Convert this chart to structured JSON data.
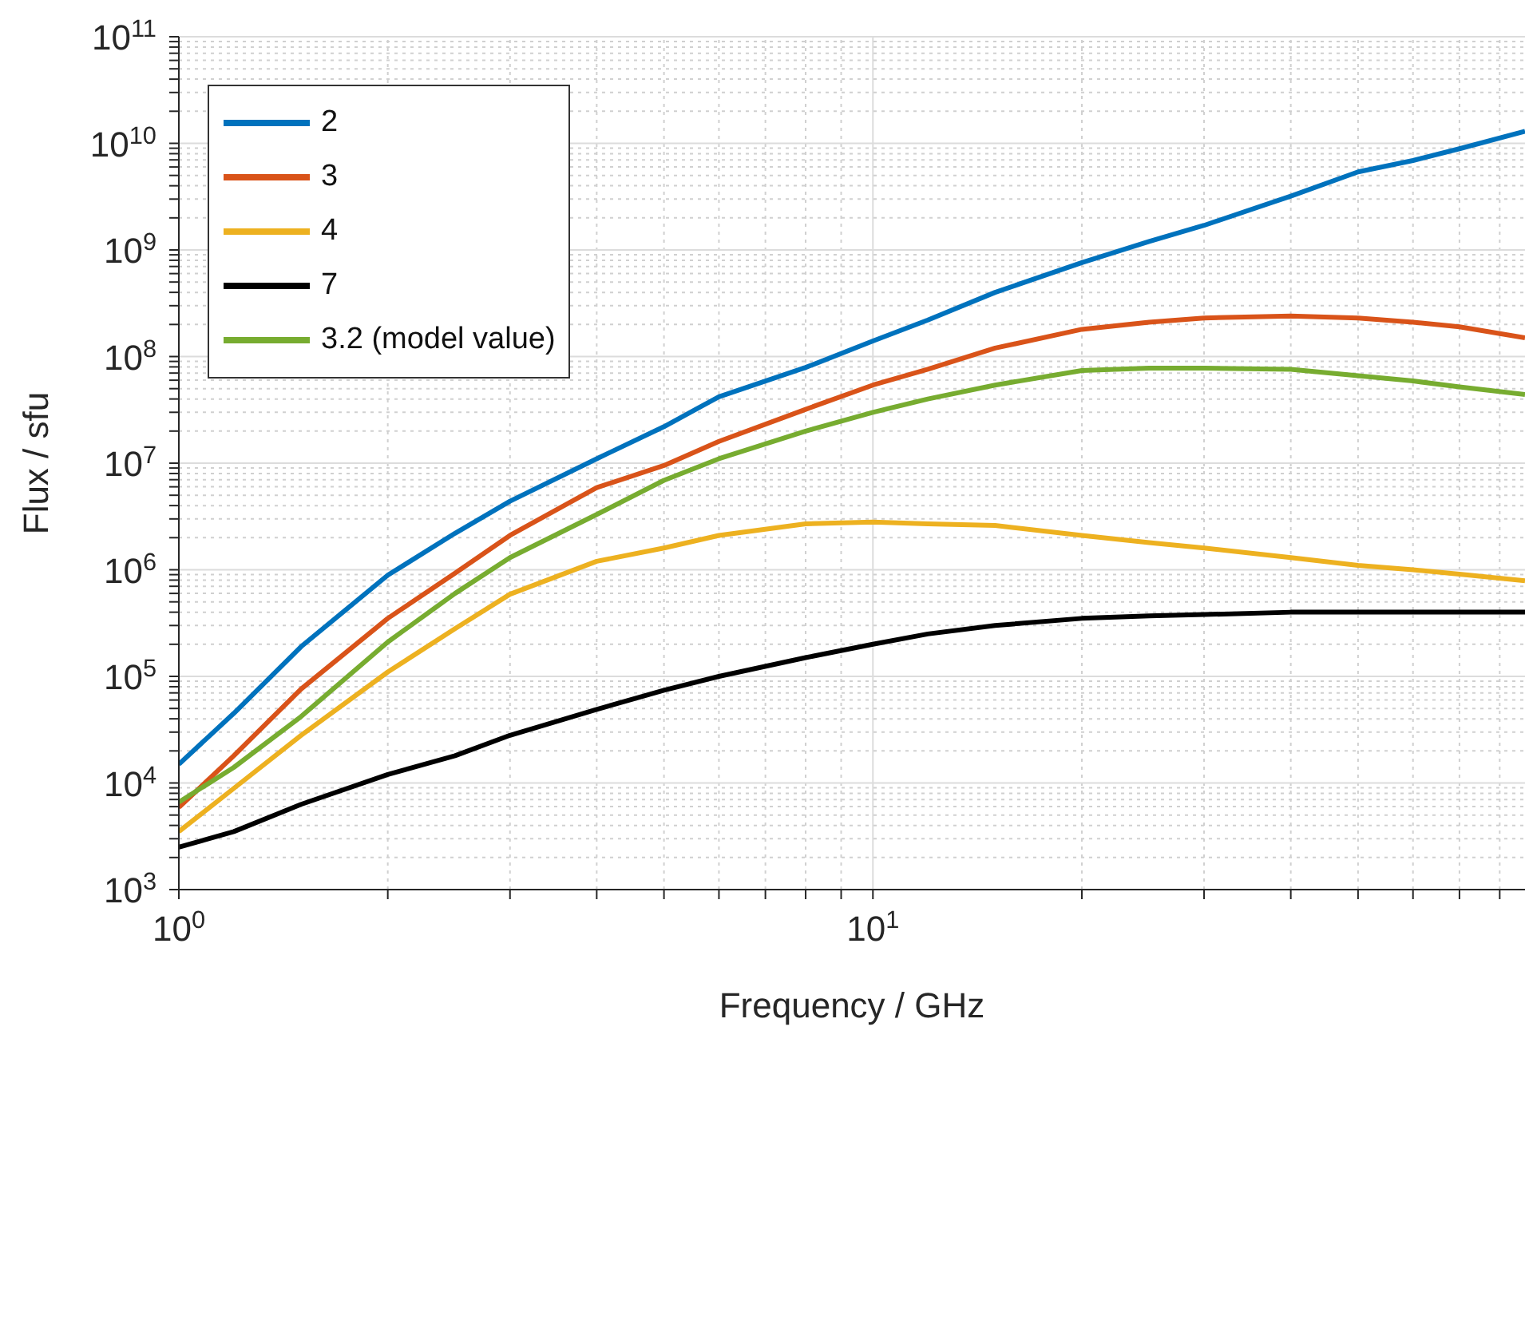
{
  "chart_data": {
    "type": "line",
    "xlabel": "Frequency / GHz",
    "ylabel": "Flux / sfu",
    "log": "xy",
    "grid": true,
    "legend": "top left",
    "marker": "none",
    "line_style": "solid",
    "x": [
      1,
      1.2,
      1.5,
      2,
      2.5,
      3,
      4,
      5,
      6,
      8,
      10,
      12,
      15,
      20,
      25,
      30,
      40,
      50,
      60,
      70,
      87
    ],
    "xlim": [
      1,
      87
    ],
    "xticks": [
      {
        "value": 1,
        "label": "10$^{0}$"
      },
      {
        "value": 2,
        "label": null
      },
      {
        "value": 3,
        "label": null
      },
      {
        "value": 4,
        "label": null
      },
      {
        "value": 5,
        "label": null
      },
      {
        "value": 6,
        "label": null
      },
      {
        "value": 7,
        "label": null
      },
      {
        "value": 8,
        "label": null
      },
      {
        "value": 9,
        "label": null
      },
      {
        "value": 10,
        "label": "10$^{1}$"
      },
      {
        "value": 20,
        "label": null
      },
      {
        "value": 30,
        "label": null
      },
      {
        "value": 40,
        "label": null
      },
      {
        "value": 50,
        "label": null
      },
      {
        "value": 60,
        "label": null
      },
      {
        "value": 70,
        "label": null
      },
      {
        "value": 80,
        "label": null
      }
    ],
    "ylim": [
      1000.0,
      100000000000.0
    ],
    "yticks": [
      {
        "value": 1000.0,
        "label": "10$^{3}$"
      },
      {
        "value": 2000.0,
        "label": null
      },
      {
        "value": 3000.0,
        "label": null
      },
      {
        "value": 4000.0,
        "label": null
      },
      {
        "value": 5000.0,
        "label": null
      },
      {
        "value": 6000.0,
        "label": null
      },
      {
        "value": 7000.0,
        "label": null
      },
      {
        "value": 8000.0,
        "label": null
      },
      {
        "value": 9000.0,
        "label": null
      },
      {
        "value": 10000.0,
        "label": "10$^{4}$"
      },
      {
        "value": 20000.0,
        "label": null
      },
      {
        "value": 30000.0,
        "label": null
      },
      {
        "value": 40000.0,
        "label": null
      },
      {
        "value": 50000.0,
        "label": null
      },
      {
        "value": 60000.0,
        "label": null
      },
      {
        "value": 70000.0,
        "label": null
      },
      {
        "value": 80000.0,
        "label": null
      },
      {
        "value": 90000.0,
        "label": null
      },
      {
        "value": 100000.0,
        "label": "10$^{5}$"
      },
      {
        "value": 200000.0,
        "label": null
      },
      {
        "value": 300000.0,
        "label": null
      },
      {
        "value": 400000.0,
        "label": null
      },
      {
        "value": 500000.0,
        "label": null
      },
      {
        "value": 600000.0,
        "label": null
      },
      {
        "value": 700000.0,
        "label": null
      },
      {
        "value": 800000.0,
        "label": null
      },
      {
        "value": 900000.0,
        "label": null
      },
      {
        "value": 1000000.0,
        "label": "10$^{6}$"
      },
      {
        "value": 2000000.0,
        "label": null
      },
      {
        "value": 3000000.0,
        "label": null
      },
      {
        "value": 4000000.0,
        "label": null
      },
      {
        "value": 5000000.0,
        "label": null
      },
      {
        "value": 6000000.0,
        "label": null
      },
      {
        "value": 7000000.0,
        "label": null
      },
      {
        "value": 8000000.0,
        "label": null
      },
      {
        "value": 9000000.0,
        "label": null
      },
      {
        "value": 10000000.0,
        "label": "10$^{7}$"
      },
      {
        "value": 20000000.0,
        "label": null
      },
      {
        "value": 30000000.0,
        "label": null
      },
      {
        "value": 40000000.0,
        "label": null
      },
      {
        "value": 50000000.0,
        "label": null
      },
      {
        "value": 60000000.0,
        "label": null
      },
      {
        "value": 70000000.0,
        "label": null
      },
      {
        "value": 80000000.0,
        "label": null
      },
      {
        "value": 90000000.0,
        "label": null
      },
      {
        "value": 100000000.0,
        "label": "10$^{8}$"
      },
      {
        "value": 200000000.0,
        "label": null
      },
      {
        "value": 300000000.0,
        "label": null
      },
      {
        "value": 400000000.0,
        "label": null
      },
      {
        "value": 500000000.0,
        "label": null
      },
      {
        "value": 600000000.0,
        "label": null
      },
      {
        "value": 700000000.0,
        "label": null
      },
      {
        "value": 800000000.0,
        "label": null
      },
      {
        "value": 900000000.0,
        "label": null
      },
      {
        "value": 1000000000.0,
        "label": "10$^{9}$"
      },
      {
        "value": 2000000000.0,
        "label": null
      },
      {
        "value": 3000000000.0,
        "label": null
      },
      {
        "value": 4000000000.0,
        "label": null
      },
      {
        "value": 5000000000.0,
        "label": null
      },
      {
        "value": 6000000000.0,
        "label": null
      },
      {
        "value": 7000000000.0,
        "label": null
      },
      {
        "value": 8000000000.0,
        "label": null
      },
      {
        "value": 9000000000.0,
        "label": null
      },
      {
        "value": 10000000000.0,
        "label": "10$^{10}$"
      },
      {
        "value": 20000000000.0,
        "label": null
      },
      {
        "value": 30000000000.0,
        "label": null
      },
      {
        "value": 40000000000.0,
        "label": null
      },
      {
        "value": 50000000000.0,
        "label": null
      },
      {
        "value": 60000000000.0,
        "label": null
      },
      {
        "value": 70000000000.0,
        "label": null
      },
      {
        "value": 80000000000.0,
        "label": null
      },
      {
        "value": 90000000000.0,
        "label": null
      },
      {
        "value": 100000000000.0,
        "label": "10$^{11}$"
      }
    ],
    "series": [
      {
        "name": "2",
        "color": "#0072bd",
        "values": [
          15000.0,
          45000.0,
          190000.0,
          890000.0,
          2200000.0,
          4400000.0,
          11000000.0,
          22000000.0,
          42000000.0,
          79000000.0,
          140000000.0,
          220000000.0,
          400000000.0,
          760000000.0,
          1200000000.0,
          1700000000.0,
          3200000000.0,
          5400000000.0,
          6900000000.0,
          8900000000.0,
          13000000000.0
        ]
      },
      {
        "name": "3",
        "color": "#d95319",
        "values": [
          5900.0,
          18000.0,
          76000.0,
          350000.0,
          930000.0,
          2100000.0,
          5900000.0,
          9500000.0,
          16000000.0,
          32000000.0,
          54000000.0,
          76000000.0,
          120000000.0,
          180000000.0,
          210000000.0,
          230000000.0,
          240000000.0,
          230000000.0,
          210000000.0,
          190000000.0,
          150000000.0
        ]
      },
      {
        "name": "4",
        "color": "#edb120",
        "values": [
          3500.0,
          8900.0,
          28000.0,
          110000.0,
          280000.0,
          590000.0,
          1200000.0,
          1600000.0,
          2100000.0,
          2700000.0,
          2800000.0,
          2700000.0,
          2600000.0,
          2100000.0,
          1800000.0,
          1600000.0,
          1300000.0,
          1100000.0,
          1000000.0,
          910000.0,
          790000.0
        ]
      },
      {
        "name": "7",
        "color": "#000000",
        "values": [
          2500.0,
          3500.0,
          6300.0,
          12000.0,
          18000.0,
          28000.0,
          49000.0,
          74000.0,
          100000.0,
          150000.0,
          200000.0,
          250000.0,
          300000.0,
          350000.0,
          370000.0,
          380000.0,
          400000.0,
          400000.0,
          400000.0,
          400000.0,
          400000.0
        ]
      },
      {
        "name": "3.2 (model value)",
        "color": "#77ac30",
        "values": [
          6600.0,
          14000.0,
          42000.0,
          210000.0,
          600000.0,
          1300000.0,
          3300000.0,
          6900000.0,
          11000000.0,
          20000000.0,
          30000000.0,
          40000000.0,
          54000000.0,
          74000000.0,
          78000000.0,
          78000000.0,
          76000000.0,
          66000000.0,
          59000000.0,
          52000000.0,
          44000000.0
        ]
      }
    ]
  }
}
